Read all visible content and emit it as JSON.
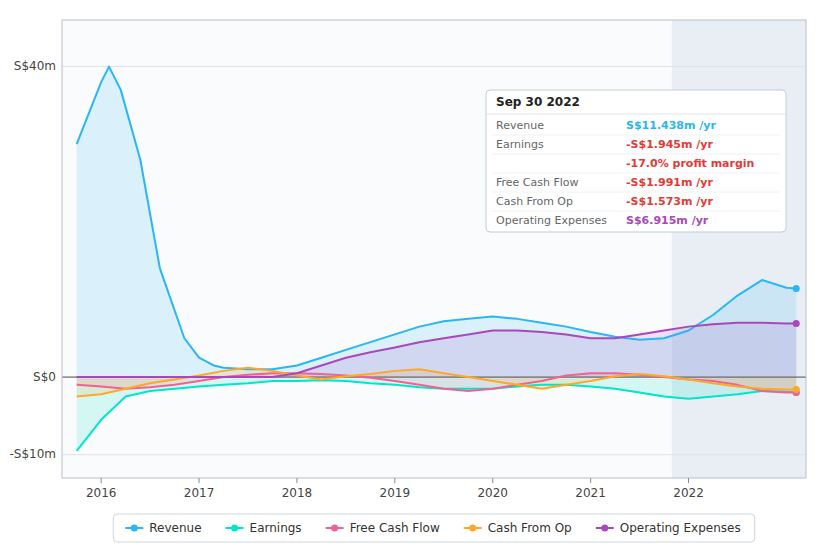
{
  "chart_data": {
    "type": "area",
    "xlim": [
      2015.6,
      2023.2
    ],
    "ylim": [
      -13,
      46
    ],
    "xticks": [
      2016,
      2017,
      2018,
      2019,
      2020,
      2021,
      2022
    ],
    "yticks": [
      {
        "value": -10,
        "label": "-S$10m"
      },
      {
        "value": 0,
        "label": "S$0"
      },
      {
        "value": 40,
        "label": "S$40m"
      }
    ],
    "grid": true,
    "legend": "bottom",
    "marker": "circle",
    "highlight_from": 2021.83,
    "series": [
      {
        "name": "Revenue",
        "color": "#29b6f6",
        "x": [
          2015.75,
          2016.0,
          2016.08,
          2016.2,
          2016.4,
          2016.6,
          2016.85,
          2017.0,
          2017.15,
          2017.25,
          2017.5,
          2017.75,
          2018.0,
          2018.25,
          2018.5,
          2018.75,
          2019.0,
          2019.25,
          2019.5,
          2019.75,
          2020.0,
          2020.25,
          2020.5,
          2020.75,
          2021.0,
          2021.25,
          2021.5,
          2021.75,
          2022.0,
          2022.25,
          2022.5,
          2022.75,
          2023.0,
          2023.1
        ],
        "values": [
          30,
          38,
          40,
          37,
          28,
          14,
          5,
          2.5,
          1.5,
          1.2,
          1.0,
          1.0,
          1.5,
          2.5,
          3.5,
          4.5,
          5.5,
          6.5,
          7.2,
          7.5,
          7.8,
          7.5,
          7.0,
          6.5,
          5.8,
          5.2,
          4.8,
          5.0,
          6.0,
          8.0,
          10.5,
          12.5,
          11.5,
          11.4
        ]
      },
      {
        "name": "Earnings",
        "color": "#00e5cc",
        "x": [
          2015.75,
          2016.0,
          2016.25,
          2016.5,
          2016.75,
          2017.0,
          2017.25,
          2017.5,
          2017.75,
          2018.0,
          2018.25,
          2018.5,
          2018.75,
          2019.0,
          2019.25,
          2019.5,
          2019.75,
          2020.0,
          2020.25,
          2020.5,
          2020.75,
          2021.0,
          2021.25,
          2021.5,
          2021.75,
          2022.0,
          2022.25,
          2022.5,
          2022.75,
          2023.0,
          2023.1
        ],
        "values": [
          -9.5,
          -5.5,
          -2.5,
          -1.8,
          -1.5,
          -1.2,
          -1.0,
          -0.8,
          -0.5,
          -0.5,
          -0.4,
          -0.5,
          -0.8,
          -1.0,
          -1.3,
          -1.5,
          -1.5,
          -1.5,
          -1.2,
          -1.0,
          -1.0,
          -1.2,
          -1.5,
          -2.0,
          -2.5,
          -2.8,
          -2.5,
          -2.2,
          -1.8,
          -1.9,
          -2.0
        ]
      },
      {
        "name": "Free Cash Flow",
        "color": "#f06292",
        "x": [
          2015.75,
          2016.0,
          2016.25,
          2016.5,
          2016.75,
          2017.0,
          2017.25,
          2017.5,
          2017.75,
          2018.0,
          2018.25,
          2018.5,
          2018.75,
          2019.0,
          2019.25,
          2019.5,
          2019.75,
          2020.0,
          2020.25,
          2020.5,
          2020.75,
          2021.0,
          2021.25,
          2021.5,
          2021.75,
          2022.0,
          2022.25,
          2022.5,
          2022.75,
          2023.0,
          2023.1
        ],
        "values": [
          -1.0,
          -1.2,
          -1.5,
          -1.3,
          -1.0,
          -0.5,
          0.0,
          0.3,
          0.5,
          0.5,
          0.4,
          0.2,
          -0.1,
          -0.5,
          -1.0,
          -1.5,
          -1.8,
          -1.5,
          -1.0,
          -0.5,
          0.2,
          0.5,
          0.5,
          0.3,
          0.0,
          -0.3,
          -0.5,
          -1.0,
          -1.8,
          -2.0,
          -2.0
        ]
      },
      {
        "name": "Cash From Op",
        "color": "#ffa726",
        "x": [
          2015.75,
          2016.0,
          2016.25,
          2016.5,
          2016.75,
          2017.0,
          2017.25,
          2017.5,
          2017.75,
          2018.0,
          2018.25,
          2018.5,
          2018.75,
          2019.0,
          2019.25,
          2019.5,
          2019.75,
          2020.0,
          2020.25,
          2020.5,
          2020.75,
          2021.0,
          2021.25,
          2021.5,
          2021.75,
          2022.0,
          2022.25,
          2022.5,
          2022.75,
          2023.0,
          2023.1
        ],
        "values": [
          -2.5,
          -2.2,
          -1.5,
          -0.8,
          -0.3,
          0.2,
          0.8,
          1.2,
          0.8,
          0.2,
          -0.3,
          0.1,
          0.4,
          0.8,
          1.0,
          0.5,
          0.0,
          -0.5,
          -1.0,
          -1.5,
          -1.0,
          -0.5,
          0.1,
          0.4,
          0.1,
          -0.3,
          -0.8,
          -1.2,
          -1.5,
          -1.6,
          -1.6
        ]
      },
      {
        "name": "Operating Expenses",
        "color": "#ab47bc",
        "x": [
          2015.75,
          2016.0,
          2016.25,
          2016.5,
          2016.75,
          2017.0,
          2017.25,
          2017.5,
          2017.75,
          2018.0,
          2018.25,
          2018.5,
          2018.75,
          2019.0,
          2019.25,
          2019.5,
          2019.75,
          2020.0,
          2020.25,
          2020.5,
          2020.75,
          2021.0,
          2021.25,
          2021.5,
          2021.75,
          2022.0,
          2022.25,
          2022.5,
          2022.75,
          2023.0,
          2023.1
        ],
        "values": [
          0.0,
          0.0,
          0.0,
          0.0,
          0.0,
          0.0,
          0.0,
          0.0,
          0.0,
          0.5,
          1.5,
          2.5,
          3.2,
          3.8,
          4.5,
          5.0,
          5.5,
          6.0,
          6.0,
          5.8,
          5.5,
          5.0,
          5.0,
          5.5,
          6.0,
          6.5,
          6.8,
          7.0,
          7.0,
          6.9,
          6.9
        ]
      }
    ],
    "annotations": [
      {
        "title": "Sep 30 2022",
        "rows": [
          {
            "label": "Revenue",
            "value": "S$11.438m /yr",
            "color": "#29b6f6"
          },
          {
            "label": "Earnings",
            "value": "-S$1.945m /yr",
            "color": "#e53935"
          },
          {
            "value": "-17.0% profit margin",
            "color": "#e53935"
          },
          {
            "label": "Free Cash Flow",
            "value": "-S$1.991m /yr",
            "color": "#e53935"
          },
          {
            "label": "Cash From Op",
            "value": "-S$1.573m /yr",
            "color": "#e53935"
          },
          {
            "label": "Operating Expenses",
            "value": "S$6.915m /yr",
            "color": "#ab47bc"
          }
        ]
      }
    ]
  }
}
